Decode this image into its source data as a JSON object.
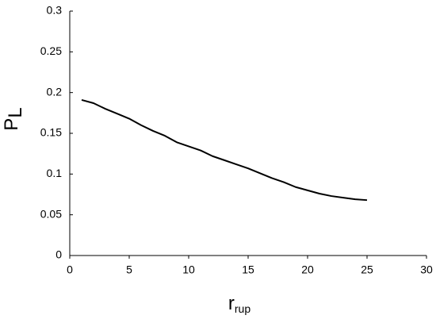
{
  "chart_data": {
    "type": "line",
    "xlabel": "r",
    "xlabel_subscript": "rup",
    "ylabel": "P",
    "ylabel_subscript": "L",
    "x": [
      1,
      2,
      3,
      4,
      5,
      6,
      7,
      8,
      9,
      10,
      11,
      12,
      13,
      14,
      15,
      16,
      17,
      18,
      19,
      20,
      21,
      22,
      23,
      24,
      25
    ],
    "series": [
      {
        "color": "#000000",
        "values": [
          0.191,
          0.187,
          0.18,
          0.174,
          0.168,
          0.16,
          0.153,
          0.147,
          0.139,
          0.134,
          0.129,
          0.122,
          0.117,
          0.112,
          0.107,
          0.101,
          0.095,
          0.09,
          0.084,
          0.08,
          0.076,
          0.073,
          0.071,
          0.069,
          0.068
        ]
      }
    ],
    "xlim": [
      0,
      30
    ],
    "xticks": [
      0,
      5,
      10,
      15,
      20,
      25,
      30
    ],
    "ylim": [
      0,
      0.3
    ],
    "yticks": [
      0,
      0.05,
      0.1,
      0.15,
      0.2,
      0.25,
      0.3
    ],
    "grid": false
  }
}
